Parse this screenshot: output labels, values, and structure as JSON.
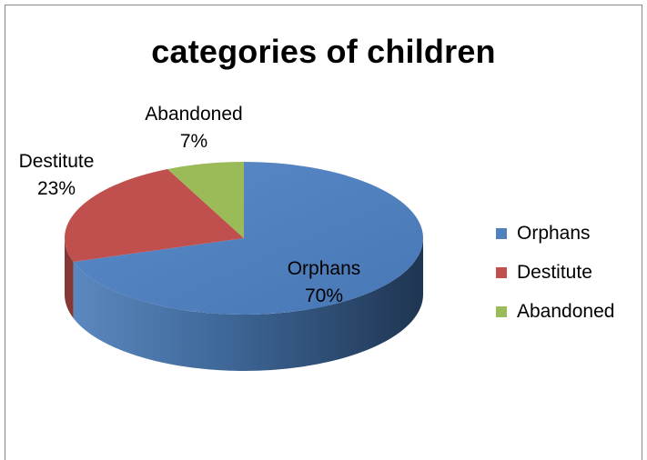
{
  "chart_data": {
    "type": "pie",
    "title": "categories of children",
    "categories": [
      "Orphans",
      "Destitute",
      "Abandoned"
    ],
    "values": [
      70,
      23,
      7
    ],
    "labels": [
      "70%",
      "23%",
      "7%"
    ],
    "colors": [
      "#4F81BD",
      "#C0504D",
      "#9BBB59"
    ],
    "style": "3d",
    "legend": {
      "position": "right",
      "entries": [
        "Orphans",
        "Destitute",
        "Abandoned"
      ]
    }
  }
}
